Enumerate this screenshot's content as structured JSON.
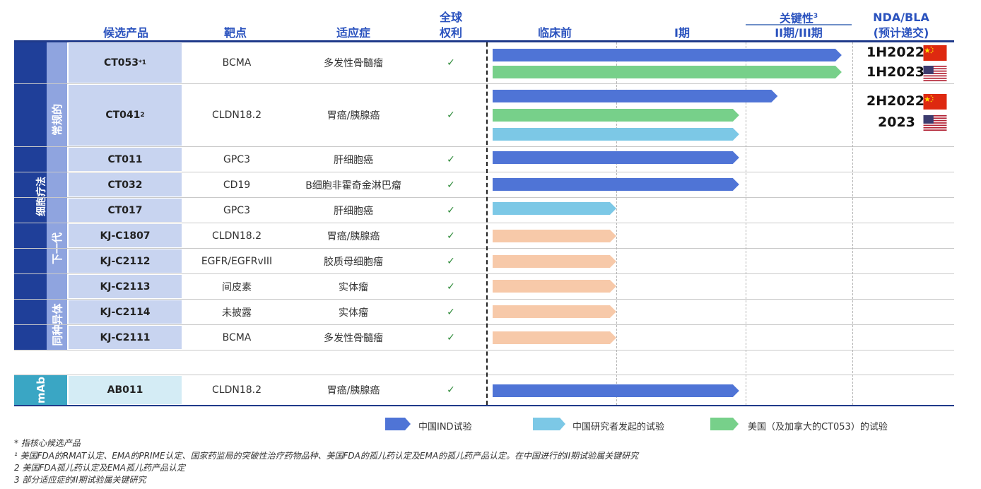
{
  "headers": {
    "candidate": "候选产品",
    "target": "靶点",
    "indication": "适应症",
    "rights_line1": "全球",
    "rights_line2": "权利",
    "preclinical": "临床前",
    "phase1": "I期",
    "pivotal": "关键性",
    "pivotal_sup": "3",
    "phase23": "II期/III期",
    "nda_line1": "NDA/BLA",
    "nda_line2": "(预计递交)"
  },
  "groups": {
    "cell_therapy": "细胞疗法",
    "conventional": "常规的",
    "next_gen": "下一代",
    "allogeneic": "同种异体",
    "mab": "mAb"
  },
  "check_mark": "✓",
  "rows": [
    {
      "name": "CT053",
      "sup": "*1",
      "target": "BCMA",
      "indication": "多发性骨髓瘤"
    },
    {
      "name": "CT041",
      "sup": "2",
      "target": "CLDN18.2",
      "indication": "胃癌/胰腺癌"
    },
    {
      "name": "CT011",
      "sup": "",
      "target": "GPC3",
      "indication": "肝细胞癌"
    },
    {
      "name": "CT032",
      "sup": "",
      "target": "CD19",
      "indication": "B细胞非霍奇金淋巴瘤"
    },
    {
      "name": "CT017",
      "sup": "",
      "target": "GPC3",
      "indication": "肝细胞癌"
    },
    {
      "name": "KJ-C1807",
      "sup": "",
      "target": "CLDN18.2",
      "indication": "胃癌/胰腺癌"
    },
    {
      "name": "KJ-C2112",
      "sup": "",
      "target": "EGFR/EGFRvIII",
      "indication": "胶质母细胞瘤"
    },
    {
      "name": "KJ-C2113",
      "sup": "",
      "target": "间皮素",
      "indication": "实体瘤"
    },
    {
      "name": "KJ-C2114",
      "sup": "",
      "target": "未披露",
      "indication": "实体瘤"
    },
    {
      "name": "KJ-C2111",
      "sup": "",
      "target": "BCMA",
      "indication": "多发性骨髓瘤"
    },
    {
      "name": "AB011",
      "sup": "",
      "target": "CLDN18.2",
      "indication": "胃癌/胰腺癌"
    }
  ],
  "nda": [
    {
      "label": "1H2022",
      "flag": "china-flag"
    },
    {
      "label": "1H2023",
      "flag": "us-flag"
    },
    {
      "label": "2H2022",
      "flag": "china-flag"
    },
    {
      "label": "2023",
      "flag": "us-flag"
    }
  ],
  "colors": {
    "china_ind": "#4f74d6",
    "investigator": "#7cc8e6",
    "us_trial": "#77d08a",
    "next_gen": "#f7c9a9"
  },
  "chart_data": {
    "type": "bar",
    "stages": [
      "临床前",
      "I期",
      "II期/III期",
      "NDA/BLA"
    ],
    "legend": [
      {
        "key": "china_ind",
        "label": "中国IND试验"
      },
      {
        "key": "investigator",
        "label": "中国研究者发起的试验"
      },
      {
        "key": "us_trial",
        "label": "美国（及加拿大的CT053）的试验"
      }
    ],
    "bars": [
      {
        "row": 0,
        "series": "china_ind",
        "progress": 2.9
      },
      {
        "row": 0,
        "series": "us_trial",
        "progress": 2.9
      },
      {
        "row": 1,
        "series": "china_ind",
        "progress": 2.3
      },
      {
        "row": 1,
        "series": "us_trial",
        "progress": 1.95
      },
      {
        "row": 1,
        "series": "investigator",
        "progress": 1.95
      },
      {
        "row": 2,
        "series": "china_ind",
        "progress": 1.95
      },
      {
        "row": 3,
        "series": "china_ind",
        "progress": 1.95
      },
      {
        "row": 4,
        "series": "investigator",
        "progress": 1.0
      },
      {
        "row": 5,
        "series": "next_gen",
        "progress": 1.0
      },
      {
        "row": 6,
        "series": "next_gen",
        "progress": 1.0
      },
      {
        "row": 7,
        "series": "next_gen",
        "progress": 1.0
      },
      {
        "row": 8,
        "series": "next_gen",
        "progress": 1.0
      },
      {
        "row": 9,
        "series": "next_gen",
        "progress": 1.0
      },
      {
        "row": 10,
        "series": "china_ind",
        "progress": 1.95
      }
    ]
  },
  "footnotes": {
    "star": "* 指核心候选产品",
    "n1": "¹ 美国FDA的RMAT认定、EMA的PRIME认定、国家药监局的突破性治疗药物品种、美国FDA的孤儿药认定及EMA的孤儿药产品认定。在中国进行的II期试验属关键研究",
    "n2": "2 美国FDA孤儿药认定及EMA孤儿药产品认定",
    "n3": "3 部分适应症的II期试验属关键研究"
  }
}
